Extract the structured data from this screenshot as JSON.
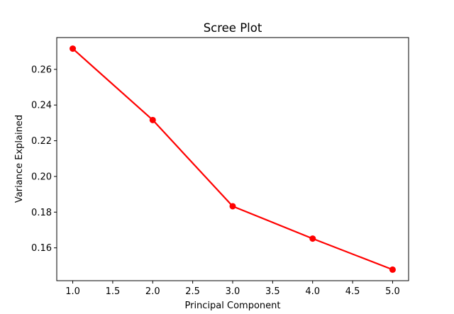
{
  "chart_data": {
    "type": "line",
    "title": "Scree Plot",
    "xlabel": "Principal Component",
    "ylabel": "Variance Explained",
    "x": [
      1,
      2,
      3,
      4,
      5
    ],
    "series": [
      {
        "values": [
          0.2716,
          0.2316,
          0.1833,
          0.1652,
          0.1478
        ],
        "color": "#ff0000",
        "marker": "circle"
      }
    ],
    "xlim": [
      0.8,
      5.2
    ],
    "ylim": [
      0.1416,
      0.2778
    ],
    "xticks": [
      1.0,
      1.5,
      2.0,
      2.5,
      3.0,
      3.5,
      4.0,
      4.5,
      5.0
    ],
    "xtick_labels": [
      "1.0",
      "1.5",
      "2.0",
      "2.5",
      "3.0",
      "3.5",
      "4.0",
      "4.5",
      "5.0"
    ],
    "yticks": [
      0.16,
      0.18,
      0.2,
      0.22,
      0.24,
      0.26
    ],
    "ytick_labels": [
      "0.16",
      "0.18",
      "0.20",
      "0.22",
      "0.24",
      "0.26"
    ],
    "grid": false,
    "legend": false
  }
}
